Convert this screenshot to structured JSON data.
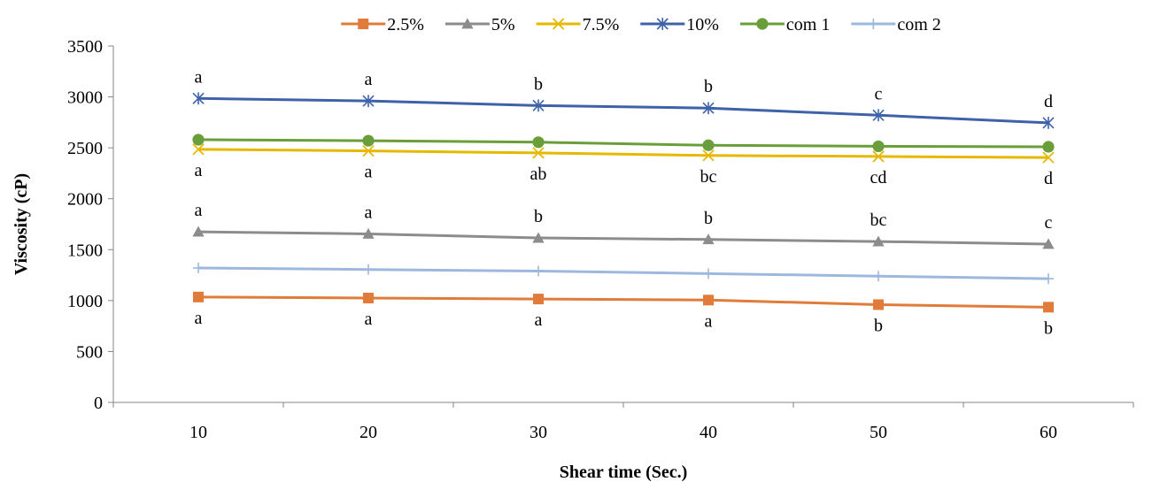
{
  "chart_data": {
    "type": "line",
    "title": "",
    "xlabel": "Shear time (Sec.)",
    "ylabel": "Viscosity (cP)",
    "x": [
      10,
      20,
      30,
      40,
      50,
      60
    ],
    "ylim": [
      0,
      3500
    ],
    "yticks": [
      0,
      500,
      1000,
      1500,
      2000,
      2500,
      3000,
      3500
    ],
    "grid": false,
    "legend_position": "top",
    "series": [
      {
        "name": "2.5%",
        "color": "#E07B39",
        "marker": "square",
        "values": [
          1035,
          1025,
          1015,
          1005,
          960,
          935
        ],
        "letters": [
          "a",
          "a",
          "a",
          "a",
          "b",
          "b"
        ],
        "letter_pos": "below"
      },
      {
        "name": "5%",
        "color": "#8C8C8C",
        "marker": "triangle",
        "values": [
          1675,
          1655,
          1615,
          1600,
          1580,
          1555
        ],
        "letters": [
          "a",
          "a",
          "b",
          "b",
          "bc",
          "c"
        ],
        "letter_pos": "above"
      },
      {
        "name": "7.5%",
        "color": "#E6B800",
        "marker": "x",
        "values": [
          2485,
          2470,
          2450,
          2425,
          2415,
          2405
        ],
        "letters": [
          "a",
          "a",
          "ab",
          "bc",
          "cd",
          "d"
        ],
        "letter_pos": "below"
      },
      {
        "name": "10%",
        "color": "#3D62A8",
        "marker": "star",
        "values": [
          2985,
          2960,
          2915,
          2890,
          2820,
          2745
        ],
        "letters": [
          "a",
          "a",
          "b",
          "b",
          "c",
          "d"
        ],
        "letter_pos": "above"
      },
      {
        "name": "com 1",
        "color": "#6A9E3A",
        "marker": "circle",
        "values": [
          2580,
          2570,
          2555,
          2525,
          2515,
          2510
        ],
        "letters": [],
        "letter_pos": "none"
      },
      {
        "name": "com 2",
        "color": "#9DB8DF",
        "marker": "plus",
        "values": [
          1320,
          1305,
          1290,
          1265,
          1240,
          1215
        ],
        "letters": [],
        "letter_pos": "none"
      }
    ]
  }
}
